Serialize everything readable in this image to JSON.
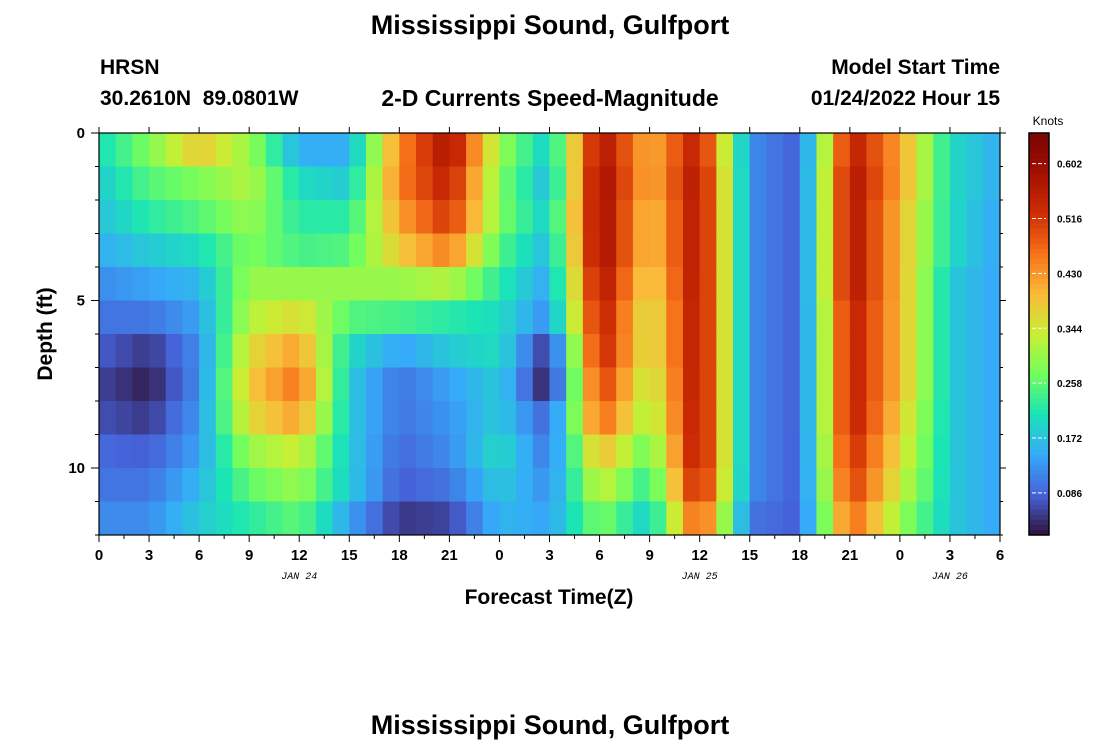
{
  "chart_data": {
    "type": "heatmap",
    "title": "Mississippi Sound, Gulfport",
    "subtitle": "2-D Currents Speed-Magnitude",
    "station": {
      "id": "HRSN",
      "coordinates": "30.2610N  89.0801W"
    },
    "model_start": {
      "label": "Model Start Time",
      "value": "01/24/2022 Hour 15"
    },
    "xlabel": "Forecast Time(Z)",
    "ylabel": "Depth (ft)",
    "x_ticks": [
      "0",
      "3",
      "6",
      "9",
      "12",
      "15",
      "18",
      "21",
      "0",
      "3",
      "6",
      "9",
      "12",
      "15",
      "18",
      "21",
      "0",
      "3",
      "6"
    ],
    "x_range_hours": [
      0,
      54
    ],
    "y_range": [
      0,
      12
    ],
    "y_ticks": [
      "0",
      "5",
      "10"
    ],
    "date_labels": [
      {
        "text": "JAN 24",
        "hour": 12
      },
      {
        "text": "JAN 25",
        "hour": 36
      },
      {
        "text": "JAN 26",
        "hour": 51
      }
    ],
    "colorbar": {
      "title": "Knots",
      "ticks": [
        "0.602",
        "0.516",
        "0.430",
        "0.344",
        "0.258",
        "0.172",
        "0.086"
      ],
      "range": [
        0.02,
        0.65
      ]
    },
    "depth_levels": [
      0.5,
      1.5,
      2.5,
      3.5,
      4.5,
      5.5,
      6.5,
      7.5,
      8.5,
      9.5,
      10.5,
      11.5
    ],
    "times": [
      0,
      3,
      6,
      9,
      12,
      15,
      18,
      21,
      24,
      27,
      30,
      33,
      36,
      39,
      42,
      45,
      48,
      51,
      54
    ],
    "values": [
      [
        0.2,
        0.28,
        0.38,
        0.3,
        0.15,
        0.15,
        0.44,
        0.58,
        0.3,
        0.18,
        0.58,
        0.4,
        0.56,
        0.12,
        0.08,
        0.56,
        0.42,
        0.2,
        0.15
      ],
      [
        0.18,
        0.25,
        0.28,
        0.32,
        0.2,
        0.18,
        0.45,
        0.55,
        0.28,
        0.16,
        0.6,
        0.4,
        0.58,
        0.12,
        0.08,
        0.58,
        0.42,
        0.2,
        0.15
      ],
      [
        0.17,
        0.22,
        0.25,
        0.3,
        0.22,
        0.22,
        0.42,
        0.52,
        0.28,
        0.18,
        0.6,
        0.38,
        0.58,
        0.12,
        0.08,
        0.58,
        0.4,
        0.2,
        0.14
      ],
      [
        0.15,
        0.18,
        0.2,
        0.28,
        0.24,
        0.25,
        0.38,
        0.45,
        0.25,
        0.16,
        0.6,
        0.38,
        0.58,
        0.12,
        0.08,
        0.58,
        0.4,
        0.2,
        0.14
      ],
      [
        0.12,
        0.14,
        0.16,
        0.3,
        0.3,
        0.3,
        0.3,
        0.32,
        0.22,
        0.14,
        0.58,
        0.36,
        0.58,
        0.12,
        0.08,
        0.58,
        0.4,
        0.18,
        0.14
      ],
      [
        0.1,
        0.1,
        0.14,
        0.32,
        0.36,
        0.25,
        0.24,
        0.22,
        0.2,
        0.12,
        0.56,
        0.34,
        0.58,
        0.12,
        0.08,
        0.56,
        0.4,
        0.18,
        0.14
      ],
      [
        0.08,
        0.05,
        0.12,
        0.36,
        0.42,
        0.2,
        0.14,
        0.18,
        0.2,
        0.04,
        0.55,
        0.34,
        0.58,
        0.12,
        0.08,
        0.56,
        0.4,
        0.18,
        0.14
      ],
      [
        0.06,
        0.03,
        0.12,
        0.38,
        0.46,
        0.18,
        0.1,
        0.14,
        0.18,
        0.02,
        0.52,
        0.32,
        0.58,
        0.12,
        0.08,
        0.56,
        0.4,
        0.18,
        0.14
      ],
      [
        0.07,
        0.05,
        0.13,
        0.36,
        0.42,
        0.18,
        0.1,
        0.13,
        0.18,
        0.08,
        0.48,
        0.3,
        0.58,
        0.12,
        0.08,
        0.56,
        0.38,
        0.18,
        0.14
      ],
      [
        0.09,
        0.08,
        0.14,
        0.3,
        0.34,
        0.18,
        0.09,
        0.12,
        0.2,
        0.1,
        0.4,
        0.26,
        0.58,
        0.12,
        0.08,
        0.54,
        0.36,
        0.18,
        0.14
      ],
      [
        0.1,
        0.1,
        0.16,
        0.26,
        0.3,
        0.18,
        0.08,
        0.1,
        0.18,
        0.12,
        0.34,
        0.22,
        0.56,
        0.12,
        0.08,
        0.52,
        0.34,
        0.18,
        0.14
      ],
      [
        0.12,
        0.12,
        0.18,
        0.22,
        0.26,
        0.14,
        0.05,
        0.06,
        0.16,
        0.14,
        0.28,
        0.18,
        0.5,
        0.1,
        0.08,
        0.48,
        0.3,
        0.18,
        0.14
      ]
    ]
  },
  "footer_title": "Mississippi Sound, Gulfport"
}
